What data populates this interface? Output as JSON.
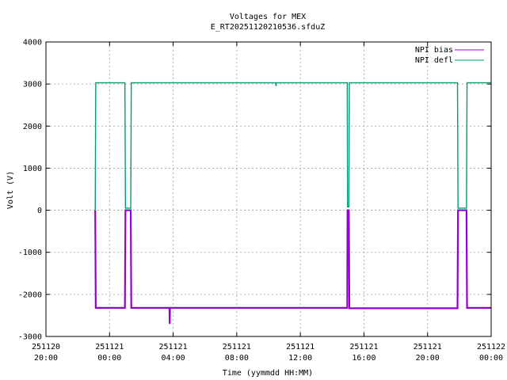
{
  "chart_data": {
    "type": "line",
    "title": "Voltages for MEX",
    "subtitle": "E_RT20251120210536.sfduZ",
    "xlabel": "Time (yymmdd HH:MM)",
    "ylabel": "Volt (V)",
    "xlim": [
      "2025-11-20 20:00",
      "2025-11-22 00:00"
    ],
    "ylim": [
      -3000,
      4000
    ],
    "grid": true,
    "legend_position": "top-right",
    "x_ticks": [
      {
        "date": "251120",
        "time": "20:00"
      },
      {
        "date": "251121",
        "time": "00:00"
      },
      {
        "date": "251121",
        "time": "04:00"
      },
      {
        "date": "251121",
        "time": "08:00"
      },
      {
        "date": "251121",
        "time": "12:00"
      },
      {
        "date": "251121",
        "time": "16:00"
      },
      {
        "date": "251121",
        "time": "20:00"
      },
      {
        "date": "251122",
        "time": "00:00"
      }
    ],
    "y_ticks": [
      "-3000",
      "-2000",
      "-1000",
      "0",
      "1000",
      "2000",
      "3000",
      "4000"
    ],
    "series": [
      {
        "name": "NPI bias",
        "color": "#9400d3",
        "points": [
          [
            "2025-11-20 23:06",
            0
          ],
          [
            "2025-11-20 23:08",
            -2320
          ],
          [
            "2025-11-21 00:58",
            -2320
          ],
          [
            "2025-11-21 01:00",
            0
          ],
          [
            "2025-11-21 01:20",
            0
          ],
          [
            "2025-11-21 01:22",
            -2320
          ],
          [
            "2025-11-21 03:46",
            -2320
          ],
          [
            "2025-11-21 03:47",
            -2700
          ],
          [
            "2025-11-21 03:48",
            -2320
          ],
          [
            "2025-11-21 14:57",
            -2320
          ],
          [
            "2025-11-21 14:58",
            0
          ],
          [
            "2025-11-21 15:03",
            0
          ],
          [
            "2025-11-21 15:05",
            -2330
          ],
          [
            "2025-11-21 21:53",
            -2330
          ],
          [
            "2025-11-21 21:55",
            0
          ],
          [
            "2025-11-21 22:27",
            0
          ],
          [
            "2025-11-21 22:29",
            -2320
          ],
          [
            "2025-11-22 00:00",
            -2320
          ]
        ]
      },
      {
        "name": "NPI defl",
        "color": "#009e73",
        "points": [
          [
            "2025-11-20 23:06",
            0
          ],
          [
            "2025-11-20 23:08",
            3030
          ],
          [
            "2025-11-21 00:58",
            3030
          ],
          [
            "2025-11-21 01:00",
            50
          ],
          [
            "2025-11-21 01:20",
            50
          ],
          [
            "2025-11-21 01:22",
            3030
          ],
          [
            "2025-11-21 10:27",
            3030
          ],
          [
            "2025-11-21 10:28",
            2950
          ],
          [
            "2025-11-21 10:29",
            3030
          ],
          [
            "2025-11-21 14:57",
            3030
          ],
          [
            "2025-11-21 14:58",
            80
          ],
          [
            "2025-11-21 15:03",
            80
          ],
          [
            "2025-11-21 15:05",
            3030
          ],
          [
            "2025-11-21 21:53",
            3030
          ],
          [
            "2025-11-21 21:55",
            50
          ],
          [
            "2025-11-21 22:27",
            50
          ],
          [
            "2025-11-21 22:29",
            3030
          ],
          [
            "2025-11-22 00:00",
            3030
          ]
        ]
      }
    ]
  }
}
